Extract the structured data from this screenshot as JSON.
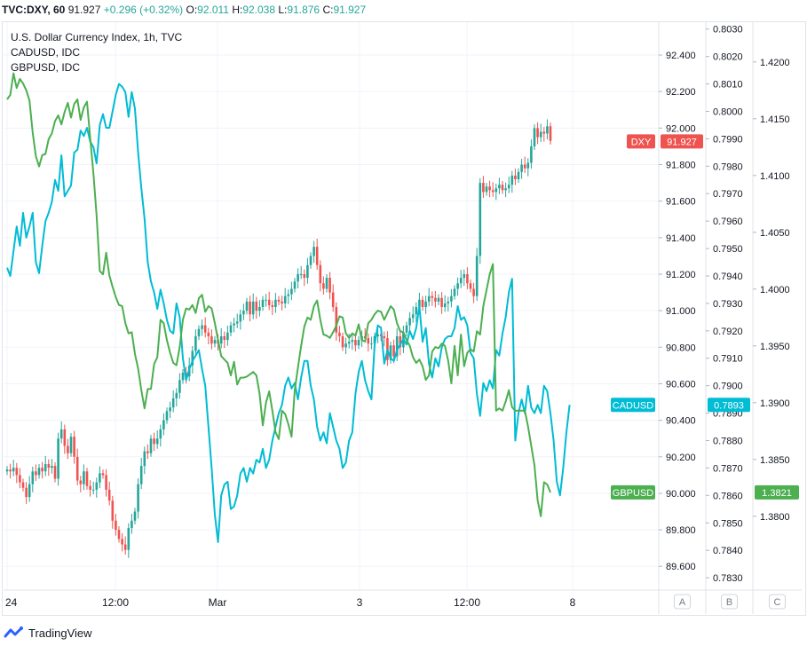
{
  "header": {
    "symbol": "TVC:DXY, 60",
    "last": "91.927",
    "change": "+0.296 (+0.32%)",
    "open_label": "O:",
    "open": "92.011",
    "high_label": "H:",
    "high": "92.038",
    "low_label": "L:",
    "low": "91.876",
    "close_label": "C:",
    "close": "91.927"
  },
  "legend": {
    "line1": "U.S. Dollar Currency Index, 1h, TVC",
    "line2": "CADUSD, IDC",
    "line3": "GBPUSD, IDC"
  },
  "footer": {
    "brand": "TradingView"
  },
  "colors": {
    "up": "#26a69a",
    "down": "#ef5350",
    "cad": "#00bcd4",
    "gbp": "#4caf50",
    "dxy_tag": "#ef5350",
    "grid": "#f0f3fa",
    "axis_text": "#131722"
  },
  "chart_data": {
    "type": "line",
    "title": "U.S. Dollar Currency Index, 1h, TVC",
    "x": {
      "ticks": [
        "24",
        "12:00",
        "Mar",
        "3",
        "12:00",
        "8"
      ]
    },
    "scales": [
      {
        "id": "A",
        "ticks": [
          "92.400",
          "92.200",
          "92.000",
          "91.800",
          "91.600",
          "91.400",
          "91.200",
          "91.000",
          "90.800",
          "90.600",
          "90.400",
          "90.200",
          "90.000",
          "89.800",
          "89.600"
        ],
        "ylim": [
          89.47,
          92.58
        ]
      },
      {
        "id": "B",
        "ticks": [
          "0.8030",
          "0.8020",
          "0.8010",
          "0.8000",
          "0.7990",
          "0.7980",
          "0.7970",
          "0.7960",
          "0.7950",
          "0.7940",
          "0.7930",
          "0.7920",
          "0.7910",
          "0.7900",
          "0.7890",
          "0.7880",
          "0.7870",
          "0.7860",
          "0.7850",
          "0.7840",
          "0.7830"
        ],
        "ylim": [
          0.78255,
          0.80325
        ]
      },
      {
        "id": "C",
        "ticks": [
          "1.4200",
          "1.4150",
          "1.4100",
          "1.4050",
          "1.4000",
          "1.3950",
          "1.3900",
          "1.3850",
          "1.3800"
        ],
        "ylim": [
          1.3735,
          1.4235
        ]
      }
    ],
    "series": [
      {
        "name": "DXY",
        "scale": "A",
        "kind": "candlestick",
        "last": "91.927",
        "closes": [
          90.13,
          90.12,
          90.14,
          90.1,
          90.06,
          90.03,
          89.98,
          90.05,
          90.12,
          90.1,
          90.14,
          90.12,
          90.16,
          90.14,
          90.15,
          90.08,
          90.3,
          90.35,
          90.26,
          90.22,
          90.31,
          90.2,
          90.07,
          90.05,
          90.12,
          90.04,
          90.02,
          90.02,
          90.06,
          90.11,
          90.1,
          90.02,
          89.96,
          89.85,
          89.8,
          89.75,
          89.72,
          89.69,
          89.81,
          89.85,
          89.9,
          90.05,
          90.15,
          90.23,
          90.22,
          90.3,
          90.27,
          90.3,
          90.35,
          90.4,
          90.45,
          90.47,
          90.52,
          90.55,
          90.62,
          90.66,
          90.64,
          90.7,
          90.78,
          90.86,
          90.9,
          90.92,
          90.88,
          90.86,
          90.82,
          90.84,
          90.82,
          90.86,
          90.84,
          90.88,
          90.92,
          90.93,
          90.94,
          90.98,
          91.0,
          91.05,
          90.98,
          91.05,
          91.0,
          91.02,
          91.06,
          91.06,
          91.03,
          91.02,
          91.06,
          91.05,
          91.04,
          91.08,
          91.09,
          91.12,
          91.16,
          91.2,
          91.2,
          91.18,
          91.25,
          91.3,
          91.35,
          91.25,
          91.15,
          91.12,
          91.18,
          91.1,
          91.02,
          90.88,
          90.86,
          90.8,
          90.82,
          90.83,
          90.84,
          90.81,
          90.84,
          90.86,
          90.85,
          90.82,
          90.82,
          90.86,
          90.87,
          90.86,
          90.85,
          90.73,
          90.81,
          90.75,
          90.86,
          90.8,
          90.88,
          90.92,
          90.96,
          90.98,
          91.02,
          91.06,
          91.02,
          91.05,
          91.08,
          91.07,
          91.05,
          91.07,
          91.02,
          91.04,
          91.05,
          91.08,
          91.12,
          91.15,
          91.18,
          91.2,
          91.15,
          91.12,
          91.08,
          91.3,
          91.7,
          91.65,
          91.68,
          91.66,
          91.65,
          91.67,
          91.69,
          91.66,
          91.67,
          91.69,
          91.74,
          91.72,
          91.76,
          91.8,
          91.78,
          91.81,
          91.9,
          92.0,
          91.95,
          91.98,
          91.97,
          92.01,
          91.93
        ]
      },
      {
        "name": "CADUSD",
        "scale": "B",
        "kind": "line",
        "last": "0.7893",
        "values": [
          0.7943,
          0.794,
          0.7949,
          0.7958,
          0.7951,
          0.7963,
          0.7954,
          0.7958,
          0.7963,
          0.7945,
          0.7941,
          0.7951,
          0.796,
          0.7963,
          0.7967,
          0.7975,
          0.7971,
          0.7984,
          0.7969,
          0.7971,
          0.7973,
          0.7985,
          0.7986,
          0.7993,
          0.7991,
          0.7994,
          0.7989,
          0.7987,
          0.7981,
          0.7995,
          0.7999,
          0.7994,
          0.7994,
          0.8,
          0.8006,
          0.801,
          0.8009,
          0.8007,
          0.7998,
          0.8007,
          0.8001,
          0.7985,
          0.7972,
          0.7961,
          0.7945,
          0.7938,
          0.7934,
          0.7928,
          0.7935,
          0.793,
          0.7924,
          0.792,
          0.7919,
          0.793,
          0.7925,
          0.791,
          0.7902,
          0.7906,
          0.7909,
          0.7911,
          0.7913,
          0.7906,
          0.79,
          0.7885,
          0.787,
          0.7853,
          0.7843,
          0.786,
          0.7864,
          0.7865,
          0.7855,
          0.7856,
          0.786,
          0.7868,
          0.787,
          0.7865,
          0.787,
          0.7868,
          0.7873,
          0.7872,
          0.7877,
          0.787,
          0.7873,
          0.788,
          0.7885,
          0.789,
          0.7893,
          0.79,
          0.7903,
          0.7899,
          0.7901,
          0.7895,
          0.7903,
          0.7909,
          0.7909,
          0.79,
          0.7895,
          0.7885,
          0.788,
          0.7883,
          0.7879,
          0.789,
          0.7885,
          0.788,
          0.7877,
          0.787,
          0.7872,
          0.788,
          0.7883,
          0.7897,
          0.7905,
          0.7909,
          0.7902,
          0.7898,
          0.7895,
          0.7915,
          0.7922,
          0.7921,
          0.7908,
          0.7913,
          0.791,
          0.7909,
          0.7913,
          0.7915,
          0.7917,
          0.7915,
          0.792,
          0.7917,
          0.7921,
          0.7929,
          0.7916,
          0.7921,
          0.7908,
          0.7903,
          0.791,
          0.7907,
          0.7914,
          0.7917,
          0.7918,
          0.7918,
          0.7921,
          0.7929,
          0.7924,
          0.7925,
          0.7922,
          0.7912,
          0.791,
          0.7897,
          0.7889,
          0.7901,
          0.7898,
          0.7902,
          0.7899,
          0.7913,
          0.7911,
          0.7919,
          0.7925,
          0.7934,
          0.7939,
          0.788,
          0.789,
          0.7895,
          0.789,
          0.79,
          0.7892,
          0.789,
          0.7893,
          0.789,
          0.79,
          0.7898,
          0.789,
          0.788,
          0.7865,
          0.786,
          0.787,
          0.7883,
          0.7893
        ]
      },
      {
        "name": "GBPUSD",
        "scale": "C",
        "kind": "line",
        "last": "1.3821",
        "values": [
          1.4167,
          1.4171,
          1.419,
          1.4177,
          1.4185,
          1.4181,
          1.4175,
          1.4166,
          1.4138,
          1.4117,
          1.4108,
          1.4118,
          1.4119,
          1.4132,
          1.4137,
          1.4148,
          1.4153,
          1.4145,
          1.4156,
          1.4164,
          1.4151,
          1.4163,
          1.4167,
          1.4149,
          1.416,
          1.4165,
          1.4133,
          1.4102,
          1.4065,
          1.4016,
          1.4013,
          1.4032,
          1.4012,
          1.4002,
          1.3993,
          1.3986,
          1.3985,
          1.397,
          1.3961,
          1.3962,
          1.3943,
          1.393,
          1.3911,
          1.3895,
          1.3912,
          1.3912,
          1.3934,
          1.394,
          1.3973,
          1.397,
          1.3955,
          1.3944,
          1.3935,
          1.3933,
          1.3949,
          1.3973,
          1.3983,
          1.3982,
          1.3986,
          1.3979,
          1.3992,
          1.3995,
          1.398,
          1.3985,
          1.3983,
          1.397,
          1.3955,
          1.3941,
          1.3938,
          1.3935,
          1.3924,
          1.3936,
          1.3916,
          1.3922,
          1.3922,
          1.3923,
          1.3925,
          1.3927,
          1.3924,
          1.3908,
          1.388,
          1.39,
          1.391,
          1.3893,
          1.3874,
          1.3868,
          1.3893,
          1.389,
          1.3881,
          1.387,
          1.3911,
          1.3931,
          1.395,
          1.3967,
          1.3975,
          1.3973,
          1.3985,
          1.399,
          1.3973,
          1.396,
          1.3959,
          1.3957,
          1.3962,
          1.3968,
          1.3976,
          1.3975,
          1.3961,
          1.3957,
          1.3961,
          1.3959,
          1.3969,
          1.3955,
          1.3954,
          1.397,
          1.3973,
          1.3978,
          1.3981,
          1.398,
          1.3973,
          1.3979,
          1.3985,
          1.3982,
          1.397,
          1.3963,
          1.3962,
          1.3955,
          1.395,
          1.394,
          1.3935,
          1.3938,
          1.3932,
          1.392,
          1.3924,
          1.3945,
          1.3949,
          1.3948,
          1.3952,
          1.395,
          1.3937,
          1.3917,
          1.395,
          1.3924,
          1.396,
          1.3932,
          1.3944,
          1.3947,
          1.3945,
          1.3963,
          1.396,
          1.3985,
          1.3999,
          1.4013,
          1.4022,
          1.3893,
          1.3895,
          1.3893,
          1.3901,
          1.3911,
          1.3896,
          1.3893,
          1.3893,
          1.3893,
          1.3893,
          1.3879,
          1.3862,
          1.3845,
          1.3814,
          1.38,
          1.383,
          1.3828,
          1.3821
        ]
      }
    ]
  }
}
